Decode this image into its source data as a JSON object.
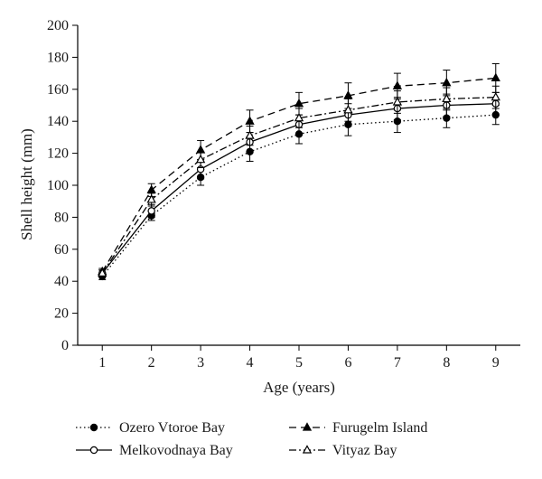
{
  "chart_data": {
    "type": "line",
    "xlabel": "Age (years)",
    "ylabel": "Shell height (mm)",
    "xlim": [
      0.5,
      9.5
    ],
    "ylim": [
      0,
      200
    ],
    "x_ticks": [
      "1",
      "2",
      "3",
      "4",
      "5",
      "6",
      "7",
      "8",
      "9"
    ],
    "y_ticks": [
      "0",
      "20",
      "40",
      "60",
      "80",
      "100",
      "120",
      "140",
      "160",
      "180",
      "200"
    ],
    "grid": false,
    "legend_position": "bottom",
    "x": [
      1,
      2,
      3,
      4,
      5,
      6,
      7,
      8,
      9
    ],
    "series": [
      {
        "name": "Ozero Vtoroe Bay",
        "line_style": "dotted",
        "marker": "filled-circle",
        "values": [
          43,
          81,
          105,
          121,
          132,
          138,
          140,
          142,
          144
        ],
        "error": [
          2,
          3,
          5,
          6,
          6,
          7,
          7,
          6,
          6
        ]
      },
      {
        "name": "Furugelm Island",
        "line_style": "dashed",
        "marker": "filled-triangle",
        "values": [
          46,
          97,
          122,
          140,
          151,
          156,
          162,
          164,
          167
        ],
        "error": [
          2,
          4,
          6,
          7,
          7,
          8,
          8,
          8,
          9
        ]
      },
      {
        "name": "Melkovodnaya Bay",
        "line_style": "solid",
        "marker": "open-circle",
        "values": [
          45,
          84,
          110,
          127,
          138,
          144,
          148,
          150,
          151
        ],
        "error": [
          2,
          4,
          6,
          6,
          6,
          7,
          7,
          7,
          7
        ]
      },
      {
        "name": "Vityaz Bay",
        "line_style": "dash-dot",
        "marker": "open-triangle",
        "values": [
          45,
          91,
          116,
          131,
          142,
          147,
          152,
          154,
          155
        ],
        "error": [
          2,
          4,
          5,
          6,
          6,
          7,
          7,
          7,
          7
        ]
      }
    ]
  }
}
